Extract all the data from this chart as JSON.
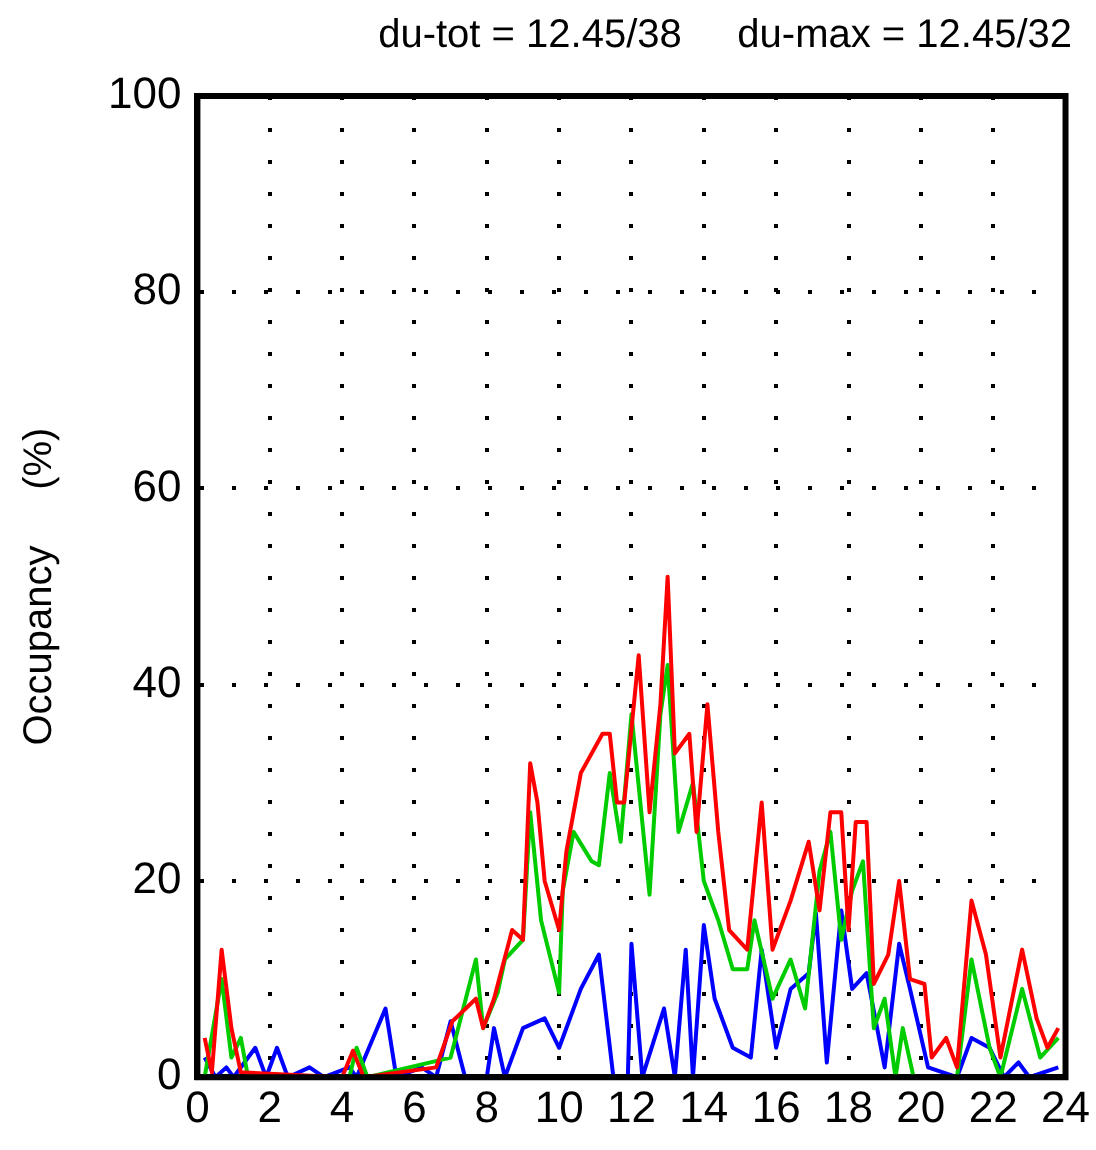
{
  "chart_data": {
    "type": "line",
    "title": "du-tot = 12.45/38     du-max = 12.45/32",
    "ylabel": "Occupancy     (%)",
    "xlim": [
      0,
      24
    ],
    "xticks": [
      0,
      2,
      4,
      6,
      8,
      10,
      12,
      14,
      16,
      18,
      20,
      22,
      24
    ],
    "ylim": [
      0,
      100
    ],
    "yticks": [
      0,
      20,
      40,
      60,
      80,
      100
    ],
    "grid": true,
    "legend": false,
    "marker": "none",
    "line_style": "solid",
    "series": [
      {
        "color": "#ff0000",
        "x": [
          0.2,
          0.4,
          0.67,
          0.94,
          1.2,
          4.0,
          4.3,
          4.6,
          6.6,
          7.05,
          7.7,
          7.9,
          8.2,
          8.7,
          9.0,
          9.2,
          9.4,
          9.6,
          10.0,
          10.2,
          10.6,
          11.2,
          11.4,
          11.6,
          11.8,
          12.2,
          12.5,
          12.8,
          13.0,
          13.2,
          13.6,
          13.8,
          14.1,
          14.4,
          14.7,
          15.2,
          15.6,
          15.9,
          16.4,
          16.9,
          17.2,
          17.5,
          17.8,
          18.0,
          18.2,
          18.5,
          18.7,
          19.1,
          19.4,
          19.7,
          20.1,
          20.3,
          20.7,
          21.0,
          21.4,
          21.8,
          22.2,
          22.8,
          23.2,
          23.5,
          23.8
        ],
        "values": [
          4,
          0.5,
          13,
          5,
          0.5,
          0,
          2.7,
          0,
          1,
          5.7,
          8,
          5,
          8,
          15,
          14,
          32,
          28,
          20,
          15,
          23,
          31,
          35,
          35,
          28,
          28,
          43,
          27,
          38,
          51,
          33,
          35,
          25,
          38,
          25,
          15,
          13,
          28,
          13,
          18,
          24,
          17,
          27,
          27,
          15,
          26,
          26,
          9.5,
          12.5,
          20,
          10,
          9.5,
          2,
          4,
          1,
          18,
          12.5,
          2,
          13,
          6,
          3,
          5
        ]
      },
      {
        "color": "#00cc00",
        "x": [
          0.2,
          0.67,
          0.94,
          1.2,
          1.4,
          4.2,
          4.4,
          4.7,
          7.0,
          7.7,
          7.9,
          8.3,
          8.5,
          9.0,
          9.2,
          9.5,
          10.0,
          10.1,
          10.4,
          10.9,
          11.1,
          11.4,
          11.7,
          12.0,
          12.5,
          12.8,
          13.0,
          13.3,
          13.7,
          14.0,
          14.4,
          14.8,
          15.2,
          15.4,
          15.9,
          16.4,
          16.8,
          17.2,
          17.5,
          17.8,
          18.1,
          18.4,
          18.7,
          19.0,
          19.3,
          19.5,
          19.8,
          21.0,
          21.4,
          21.9,
          22.2,
          22.8,
          23.3,
          23.8
        ],
        "values": [
          0,
          10,
          2,
          4,
          0,
          0,
          3,
          0,
          2,
          12,
          5,
          8.6,
          12,
          14,
          27,
          16,
          8.6,
          19,
          25,
          22,
          21.6,
          31,
          24,
          37,
          18.6,
          37,
          42,
          25,
          30,
          20,
          16,
          11,
          11,
          16,
          8,
          12,
          7,
          21,
          25,
          14,
          19,
          22,
          5,
          8,
          0,
          5,
          0,
          0,
          12,
          3,
          0,
          9,
          2,
          4
        ]
      },
      {
        "color": "#0000ff",
        "x": [
          0.2,
          0.5,
          0.8,
          1.0,
          1.6,
          1.9,
          2.2,
          2.5,
          3.1,
          3.5,
          4.2,
          4.4,
          5.2,
          5.5,
          6.2,
          6.6,
          7.0,
          7.4,
          8.0,
          8.2,
          8.5,
          9.0,
          9.6,
          10.0,
          10.6,
          11.1,
          11.5,
          11.9,
          12.0,
          12.3,
          12.9,
          13.2,
          13.5,
          13.7,
          14.0,
          14.3,
          14.8,
          15.3,
          15.6,
          16.0,
          16.4,
          16.9,
          17.1,
          17.4,
          17.8,
          18.1,
          18.5,
          19.0,
          19.4,
          19.7,
          20.2,
          21.0,
          21.4,
          21.9,
          22.3,
          22.7,
          23.0,
          23.8
        ],
        "values": [
          2,
          0,
          1,
          0,
          3,
          0,
          3,
          0,
          1,
          0,
          1,
          0,
          7,
          0,
          1,
          0,
          5.7,
          0,
          0,
          5,
          0,
          5,
          6,
          3,
          9,
          12.5,
          0,
          0,
          13.6,
          0,
          7,
          0,
          13,
          0,
          15.5,
          8,
          3,
          2,
          13,
          3,
          9,
          10.6,
          16.7,
          1.5,
          17,
          9,
          10.6,
          1,
          13.6,
          9,
          1,
          0,
          4,
          3,
          0,
          1.5,
          0,
          1
        ]
      }
    ]
  }
}
